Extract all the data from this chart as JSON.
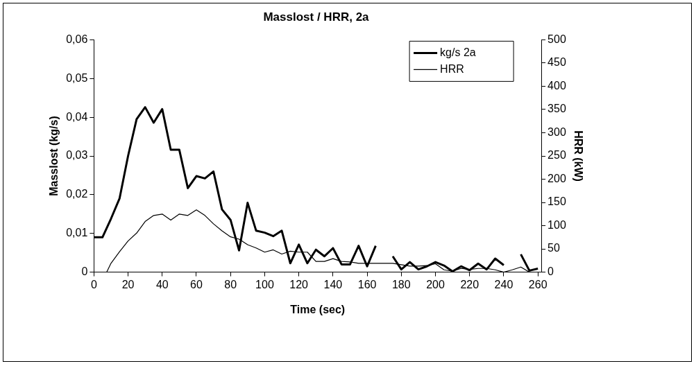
{
  "chart_data": {
    "type": "line",
    "title": "Masslost / HRR, 2a",
    "xlabel": "Time (sec)",
    "ylabel": "Masslost (kg/s)",
    "y2label": "HRR (kW)",
    "x": [
      0,
      5,
      10,
      15,
      20,
      25,
      30,
      35,
      40,
      45,
      50,
      55,
      60,
      65,
      70,
      75,
      80,
      85,
      90,
      95,
      100,
      105,
      110,
      115,
      120,
      125,
      130,
      135,
      140,
      145,
      150,
      155,
      160,
      165,
      170,
      175,
      180,
      185,
      190,
      195,
      200,
      205,
      210,
      215,
      220,
      225,
      230,
      235,
      240,
      245,
      250,
      255,
      260
    ],
    "series": [
      {
        "name": "kg/s 2a",
        "color": "#000000",
        "values": [
          0.009,
          0.009,
          0.0138,
          0.019,
          0.03,
          0.0395,
          0.0426,
          0.0386,
          0.0421,
          0.0316,
          0.0316,
          0.0217,
          0.0248,
          0.0242,
          0.026,
          0.0162,
          0.0135,
          0.0056,
          0.0179,
          0.0107,
          0.0102,
          0.0093,
          0.0107,
          0.0023,
          0.0071,
          0.0023,
          0.0058,
          0.0041,
          0.0062,
          0.002,
          0.002,
          0.0068,
          0.0015,
          0.0068,
          null,
          0.0041,
          0.0007,
          0.0026,
          0.0007,
          0.0015,
          0.0026,
          0.0017,
          0.0002,
          0.0015,
          0.0005,
          0.0022,
          0.0007,
          0.0035,
          0.0018,
          null,
          0.0046,
          0.0004,
          0.0009
        ]
      },
      {
        "name": "HRR",
        "color": "#000000",
        "axis": "y2",
        "x": [
          7.5,
          10,
          15,
          20,
          25,
          30,
          35,
          40,
          45,
          50,
          55,
          60,
          65,
          70,
          75,
          80,
          85,
          90,
          95,
          100,
          105,
          110,
          115,
          120,
          125,
          130,
          135,
          140,
          145,
          150,
          155,
          160,
          165,
          170,
          175,
          180,
          185,
          190,
          195,
          200,
          205,
          210,
          215,
          220,
          225,
          230,
          235,
          240,
          245,
          250,
          255,
          260
        ],
        "values": [
          0,
          19,
          44,
          67,
          84,
          109,
          122,
          125,
          112,
          125,
          122,
          134,
          122,
          104,
          89,
          76,
          71,
          59,
          52,
          43,
          48,
          39,
          45,
          43,
          43,
          23,
          23,
          29,
          23,
          22,
          19,
          19,
          19,
          19,
          19,
          16,
          13,
          13,
          14,
          18,
          5,
          2,
          8,
          6,
          8,
          8,
          5,
          0,
          5,
          11,
          0,
          0
        ]
      }
    ],
    "xlim": [
      0,
      262
    ],
    "xticks": [
      0,
      20,
      40,
      60,
      80,
      100,
      120,
      140,
      160,
      180,
      200,
      220,
      240,
      260
    ],
    "ylim": [
      0,
      0.06
    ],
    "yticks": [
      0,
      {
        "value": 0.01,
        "label": "0,01"
      },
      {
        "value": 0.02,
        "label": "0,02"
      },
      {
        "value": 0.03,
        "label": "0,03"
      },
      {
        "value": 0.04,
        "label": "0,04"
      },
      {
        "value": 0.05,
        "label": "0,05"
      },
      {
        "value": 0.06,
        "label": "0,06"
      }
    ],
    "y2lim": [
      0,
      500
    ],
    "y2ticks": [
      0,
      50,
      100,
      150,
      200,
      250,
      300,
      350,
      400,
      450,
      500
    ],
    "grid": false,
    "legend": "top right",
    "marker": "none",
    "line_style": "solid"
  }
}
